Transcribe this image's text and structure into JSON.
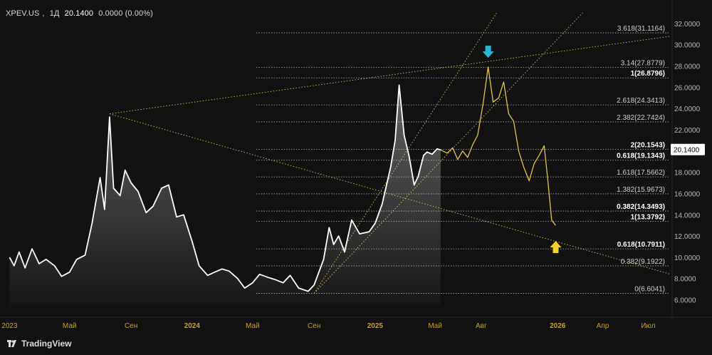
{
  "header": {
    "symbol": "XPEV.US",
    "interval": "1Д",
    "price": "20.1400",
    "change": "0.0000 (0.00%)"
  },
  "branding": {
    "name": "TradingView",
    "logo_icon": "tradingview-logo-icon"
  },
  "colors": {
    "background": "#121212",
    "price_line": "#ffffff",
    "projection": "#e0c34a",
    "fib_levels": "#cfcfcf",
    "axis_text_y": "#b9b9b9",
    "axis_text_x": "#c9a227",
    "arrow_down": "#29b6d6",
    "arrow_up": "#f2d12c"
  },
  "chart_data": {
    "type": "line",
    "y_axis": {
      "range": [
        5.5,
        33
      ],
      "ticks": [
        "32.0000",
        "30.0000",
        "28.0000",
        "26.0000",
        "24.0000",
        "22.0000",
        "20.0000",
        "18.0000",
        "16.0000",
        "14.0000",
        "12.0000",
        "10.0000",
        "8.0000",
        "6.0000"
      ],
      "current_price_label": "20.1400"
    },
    "x_axis": {
      "ticks": [
        "2023",
        "Май",
        "Сен",
        "2024",
        "Май",
        "Сен",
        "2025",
        "Май",
        "Авг",
        "2026",
        "Апр",
        "Июл"
      ],
      "tick_dates": [
        "2023-01-01",
        "2023-05-01",
        "2023-09-01",
        "2024-01-01",
        "2024-05-01",
        "2024-09-01",
        "2025-01-01",
        "2025-05-01",
        "2025-08-01",
        "2026-01-01",
        "2026-04-01",
        "2026-07-01"
      ],
      "bold_ticks": [
        "2024",
        "2025",
        "2026"
      ]
    },
    "series": [
      {
        "values": [
          [
            "2023-01-01",
            10.0
          ],
          [
            "2023-01-10",
            9.2
          ],
          [
            "2023-01-20",
            10.5
          ],
          [
            "2023-02-01",
            9.0
          ],
          [
            "2023-02-15",
            10.8
          ],
          [
            "2023-03-01",
            9.4
          ],
          [
            "2023-03-15",
            9.8
          ],
          [
            "2023-04-01",
            9.2
          ],
          [
            "2023-04-15",
            8.2
          ],
          [
            "2023-05-01",
            8.6
          ],
          [
            "2023-05-15",
            9.8
          ],
          [
            "2023-06-01",
            10.2
          ],
          [
            "2023-06-15",
            13.2
          ],
          [
            "2023-07-01",
            17.5
          ],
          [
            "2023-07-10",
            14.5
          ],
          [
            "2023-07-20",
            23.2
          ],
          [
            "2023-07-28",
            16.5
          ],
          [
            "2023-08-10",
            15.8
          ],
          [
            "2023-08-20",
            18.2
          ],
          [
            "2023-09-01",
            17.0
          ],
          [
            "2023-09-15",
            16.2
          ],
          [
            "2023-10-01",
            14.2
          ],
          [
            "2023-10-15",
            14.8
          ],
          [
            "2023-11-01",
            16.5
          ],
          [
            "2023-11-15",
            16.8
          ],
          [
            "2023-12-01",
            13.8
          ],
          [
            "2023-12-15",
            14.0
          ],
          [
            "2024-01-01",
            11.5
          ],
          [
            "2024-01-15",
            9.2
          ],
          [
            "2024-02-01",
            8.3
          ],
          [
            "2024-02-15",
            8.6
          ],
          [
            "2024-03-01",
            8.9
          ],
          [
            "2024-03-15",
            8.7
          ],
          [
            "2024-04-01",
            8.0
          ],
          [
            "2024-04-15",
            7.1
          ],
          [
            "2024-05-01",
            7.6
          ],
          [
            "2024-05-15",
            8.4
          ],
          [
            "2024-06-01",
            8.1
          ],
          [
            "2024-06-15",
            7.9
          ],
          [
            "2024-07-01",
            7.6
          ],
          [
            "2024-07-15",
            8.3
          ],
          [
            "2024-08-01",
            7.1
          ],
          [
            "2024-08-20",
            6.8
          ],
          [
            "2024-09-01",
            7.4
          ],
          [
            "2024-09-20",
            9.8
          ],
          [
            "2024-10-01",
            12.8
          ],
          [
            "2024-10-10",
            11.2
          ],
          [
            "2024-10-20",
            12.0
          ],
          [
            "2024-11-01",
            10.5
          ],
          [
            "2024-11-15",
            13.5
          ],
          [
            "2024-12-01",
            12.2
          ],
          [
            "2024-12-20",
            12.4
          ],
          [
            "2025-01-01",
            13.2
          ],
          [
            "2025-01-15",
            15.0
          ],
          [
            "2025-02-01",
            18.5
          ],
          [
            "2025-02-10",
            21.0
          ],
          [
            "2025-02-18",
            26.2
          ],
          [
            "2025-02-28",
            21.5
          ],
          [
            "2025-03-10",
            19.5
          ],
          [
            "2025-03-20",
            16.8
          ],
          [
            "2025-03-28",
            17.6
          ],
          [
            "2025-04-08",
            19.6
          ],
          [
            "2025-04-15",
            19.9
          ],
          [
            "2025-04-25",
            19.7
          ],
          [
            "2025-05-05",
            20.2
          ],
          [
            "2025-05-12",
            20.1
          ]
        ]
      },
      {
        "values": [
          [
            "2025-05-12",
            20.1
          ],
          [
            "2025-05-25",
            19.8
          ],
          [
            "2025-06-05",
            20.3
          ],
          [
            "2025-06-15",
            19.2
          ],
          [
            "2025-06-25",
            20.0
          ],
          [
            "2025-07-05",
            19.4
          ],
          [
            "2025-07-15",
            20.6
          ],
          [
            "2025-07-25",
            21.5
          ],
          [
            "2025-08-05",
            24.5
          ],
          [
            "2025-08-15",
            27.9
          ],
          [
            "2025-08-25",
            24.6
          ],
          [
            "2025-09-05",
            25.0
          ],
          [
            "2025-09-15",
            26.5
          ],
          [
            "2025-09-25",
            23.5
          ],
          [
            "2025-10-05",
            22.8
          ],
          [
            "2025-10-15",
            20.0
          ],
          [
            "2025-10-25",
            18.5
          ],
          [
            "2025-11-05",
            17.2
          ],
          [
            "2025-11-15",
            18.8
          ],
          [
            "2025-11-25",
            19.6
          ],
          [
            "2025-12-05",
            20.5
          ],
          [
            "2025-12-12",
            17.4
          ],
          [
            "2025-12-20",
            13.5
          ],
          [
            "2025-12-28",
            13.0
          ]
        ]
      }
    ],
    "fib_levels": [
      {
        "label": "3.618(31.1164)",
        "value": 31.1164,
        "bold": false
      },
      {
        "label": "3.14(27.8779)",
        "value": 27.8779,
        "bold": false
      },
      {
        "label": "1(26.8796)",
        "value": 26.8796,
        "bold": true
      },
      {
        "label": "2.618(24.3413)",
        "value": 24.3413,
        "bold": false
      },
      {
        "label": "2.382(22.7424)",
        "value": 22.7424,
        "bold": false
      },
      {
        "label": "2(20.1543)",
        "value": 20.1543,
        "bold": true
      },
      {
        "label": "0.618(19.1343)",
        "value": 19.1343,
        "bold": true
      },
      {
        "label": "1.618(17.5662)",
        "value": 17.5662,
        "bold": false
      },
      {
        "label": "1.382(15.9673)",
        "value": 15.9673,
        "bold": false
      },
      {
        "label": "0.382(14.3493)",
        "value": 14.3493,
        "bold": true
      },
      {
        "label": "1(13.3792)",
        "value": 13.3792,
        "bold": true
      },
      {
        "label": "0.618(10.7911)",
        "value": 10.7911,
        "bold": true
      },
      {
        "label": "0.382(9.1922)",
        "value": 9.1922,
        "bold": false
      },
      {
        "label": "0(6.6041)",
        "value": 6.6041,
        "bold": false
      }
    ],
    "trend_lines": [
      {
        "from": [
          "2023-07-20",
          23.5
        ],
        "to": [
          "2026-08-15",
          8.4
        ]
      },
      {
        "from": [
          "2023-07-20",
          23.5
        ],
        "to": [
          "2026-08-15",
          30.8
        ]
      },
      {
        "from": [
          "2024-09-01",
          6.6
        ],
        "to": [
          "2025-09-01",
          33.0
        ]
      },
      {
        "from": [
          "2024-09-01",
          6.6
        ],
        "to": [
          "2026-02-20",
          33.0
        ]
      }
    ],
    "markers": [
      {
        "icon": "arrow-down-icon",
        "date": "2025-08-15",
        "value": 29.3,
        "direction": "down"
      },
      {
        "icon": "arrow-up-icon",
        "date": "2025-12-28",
        "value": 11.0,
        "direction": "up"
      }
    ]
  }
}
